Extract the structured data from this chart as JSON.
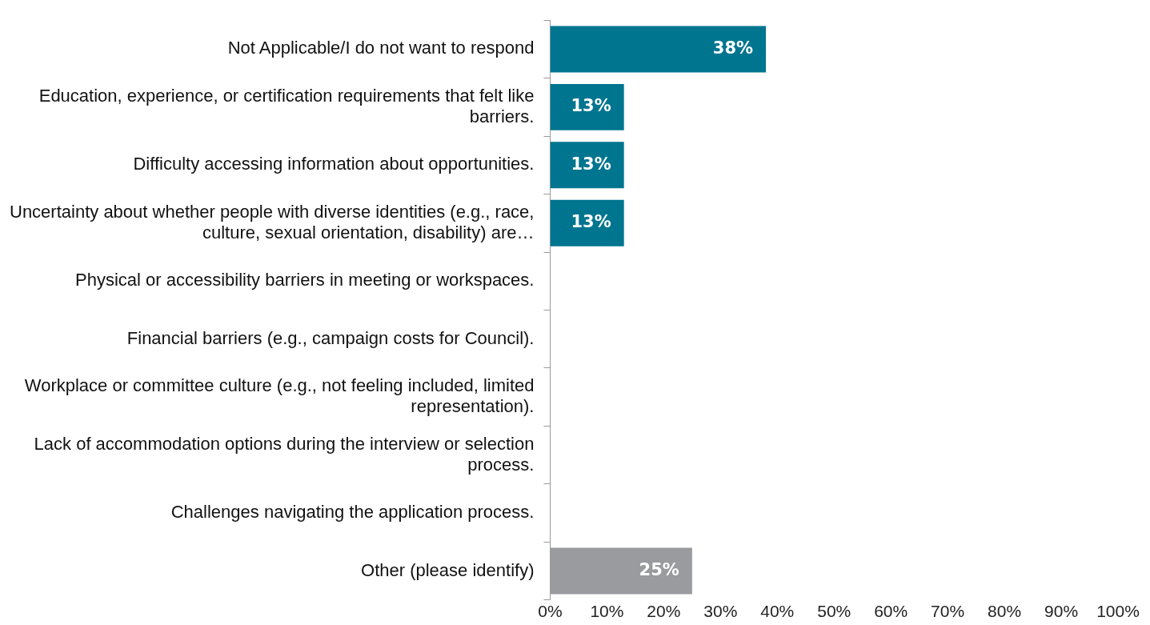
{
  "chart_data": {
    "type": "bar",
    "orientation": "horizontal",
    "categories": [
      "Not Applicable/I do not want to respond",
      "Education, experience, or certification requirements that felt like barriers.",
      "Difficulty accessing information about opportunities.",
      "Uncertainty about whether people with diverse identities (e.g., race, culture, sexual orientation, disability) are…",
      "Physical or accessibility barriers in meeting or workspaces.",
      "Financial barriers (e.g., campaign costs for Council).",
      "Workplace or committee culture (e.g., not feeling included, limited representation).",
      "Lack of accommodation options during the interview or selection process.",
      "Challenges navigating the application process.",
      "Other (please identify)"
    ],
    "values": [
      38,
      13,
      13,
      13,
      0,
      0,
      0,
      0,
      0,
      25
    ],
    "colors": [
      "#00758f",
      "#00758f",
      "#00758f",
      "#00758f",
      "#00758f",
      "#00758f",
      "#00758f",
      "#00758f",
      "#00758f",
      "#999b9e"
    ],
    "value_labels": [
      "38%",
      "13%",
      "13%",
      "13%",
      null,
      null,
      null,
      null,
      null,
      "25%"
    ],
    "xlim": [
      0,
      100
    ],
    "xticks": [
      {
        "value": 0,
        "label": "0%"
      },
      {
        "value": 10,
        "label": "10%"
      },
      {
        "value": 20,
        "label": "20%"
      },
      {
        "value": 30,
        "label": "30%"
      },
      {
        "value": 40,
        "label": "40%"
      },
      {
        "value": 50,
        "label": "50%"
      },
      {
        "value": 60,
        "label": "60%"
      },
      {
        "value": 70,
        "label": "70%"
      },
      {
        "value": 80,
        "label": "80%"
      },
      {
        "value": 90,
        "label": "90%"
      },
      {
        "value": 100,
        "label": "100%"
      }
    ],
    "legend": false
  }
}
